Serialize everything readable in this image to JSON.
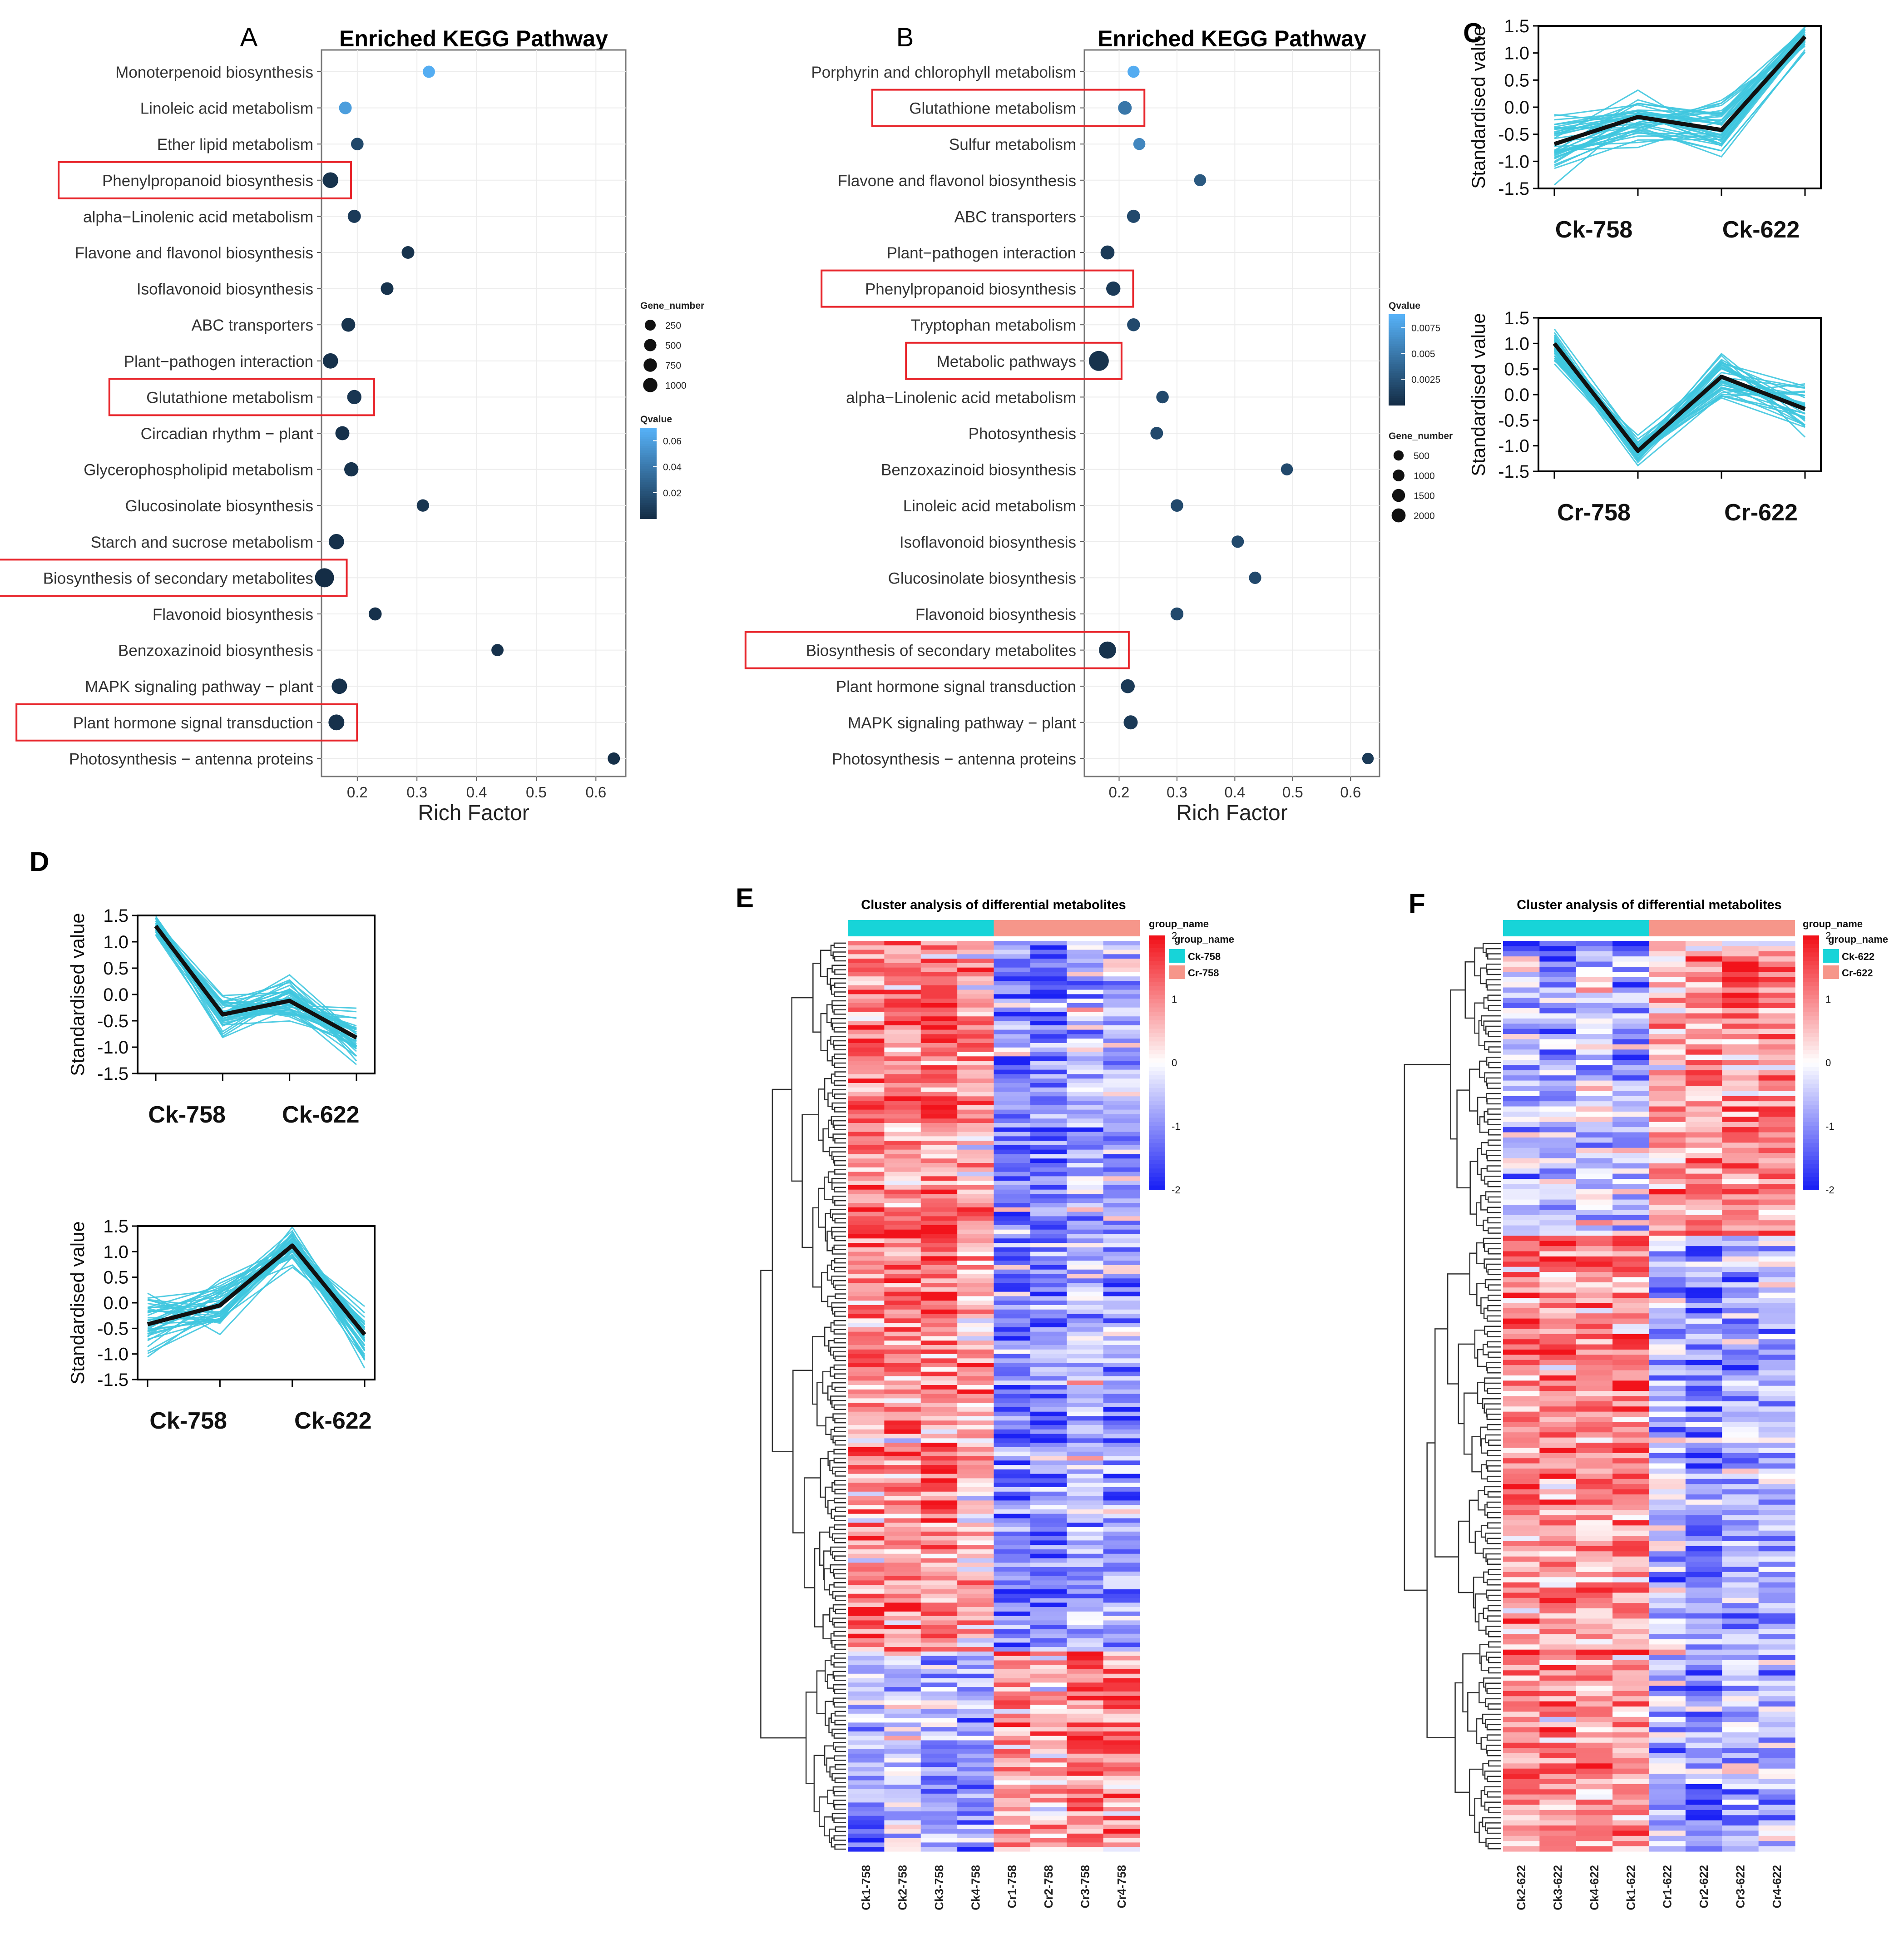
{
  "chart_data": [
    {
      "panel": "A",
      "type": "scatter",
      "title": "Enriched KEGG Pathway",
      "xlabel": "Rich Factor",
      "ylabel": "",
      "xlim": [
        0.14,
        0.65
      ],
      "xticks": [
        0.2,
        0.3,
        0.4,
        0.5,
        0.6
      ],
      "legend": {
        "gene_title": "Gene_number",
        "gene_values": [
          250,
          500,
          750,
          1000
        ],
        "q_title": "Qvalue",
        "q_ticks": [
          0.06,
          0.04,
          0.02
        ],
        "q_range": [
          0.0,
          0.07
        ],
        "position": "right"
      },
      "points": [
        {
          "pathway": "Monoterpenoid biosynthesis",
          "rich": 0.32,
          "genes": 60,
          "q": 0.068,
          "boxed": false
        },
        {
          "pathway": "Linoleic acid metabolism",
          "rich": 0.18,
          "genes": 90,
          "q": 0.06,
          "boxed": false
        },
        {
          "pathway": "Ether lipid metabolism",
          "rich": 0.2,
          "genes": 80,
          "q": 0.015,
          "boxed": false
        },
        {
          "pathway": "Phenylpropanoid biosynthesis",
          "rich": 0.155,
          "genes": 400,
          "q": 0.004,
          "boxed": true
        },
        {
          "pathway": "alpha−Linolenic acid metabolism",
          "rich": 0.195,
          "genes": 120,
          "q": 0.008,
          "boxed": false
        },
        {
          "pathway": "Flavone and flavonol biosynthesis",
          "rich": 0.285,
          "genes": 90,
          "q": 0.004,
          "boxed": false
        },
        {
          "pathway": "Isoflavonoid biosynthesis",
          "rich": 0.25,
          "genes": 90,
          "q": 0.004,
          "boxed": false
        },
        {
          "pathway": "ABC transporters",
          "rich": 0.185,
          "genes": 180,
          "q": 0.004,
          "boxed": false
        },
        {
          "pathway": "Plant−pathogen interaction",
          "rich": 0.155,
          "genes": 350,
          "q": 0.003,
          "boxed": false
        },
        {
          "pathway": "Glutathione metabolism",
          "rich": 0.195,
          "genes": 220,
          "q": 0.006,
          "boxed": true
        },
        {
          "pathway": "Circadian rhythm − plant",
          "rich": 0.175,
          "genes": 200,
          "q": 0.003,
          "boxed": false
        },
        {
          "pathway": "Glycerophospholipid metabolism",
          "rich": 0.19,
          "genes": 220,
          "q": 0.004,
          "boxed": false
        },
        {
          "pathway": "Glucosinolate biosynthesis",
          "rich": 0.31,
          "genes": 70,
          "q": 0.005,
          "boxed": false
        },
        {
          "pathway": "Starch and sucrose metabolism",
          "rich": 0.165,
          "genes": 350,
          "q": 0.003,
          "boxed": false
        },
        {
          "pathway": "Biosynthesis of secondary metabolites",
          "rich": 0.145,
          "genes": 1050,
          "q": 0.001,
          "boxed": true
        },
        {
          "pathway": "Flavonoid biosynthesis",
          "rich": 0.23,
          "genes": 110,
          "q": 0.003,
          "boxed": false
        },
        {
          "pathway": "Benzoxazinoid biosynthesis",
          "rich": 0.435,
          "genes": 60,
          "q": 0.003,
          "boxed": false
        },
        {
          "pathway": "MAPK signaling pathway − plant",
          "rich": 0.17,
          "genes": 360,
          "q": 0.003,
          "boxed": false
        },
        {
          "pathway": "Plant hormone signal transduction",
          "rich": 0.165,
          "genes": 420,
          "q": 0.003,
          "boxed": true
        },
        {
          "pathway": "Photosynthesis − antenna proteins",
          "rich": 0.63,
          "genes": 60,
          "q": 0.002,
          "boxed": false
        }
      ]
    },
    {
      "panel": "B",
      "type": "scatter",
      "title": "Enriched KEGG Pathway",
      "xlabel": "Rich Factor",
      "ylabel": "",
      "xlim": [
        0.14,
        0.65
      ],
      "xticks": [
        0.2,
        0.3,
        0.4,
        0.5,
        0.6
      ],
      "legend": {
        "q_title": "Qvalue",
        "q_ticks": [
          0.0075,
          0.005,
          0.0025
        ],
        "q_range": [
          0.0,
          0.0088
        ],
        "gene_title": "Gene_number",
        "gene_values": [
          500,
          1000,
          1500,
          2000
        ],
        "position": "right"
      },
      "points": [
        {
          "pathway": "Porphyrin and chlorophyll metabolism",
          "rich": 0.225,
          "genes": 150,
          "q": 0.0085,
          "boxed": false
        },
        {
          "pathway": "Glutathione metabolism",
          "rich": 0.21,
          "genes": 350,
          "q": 0.005,
          "boxed": true
        },
        {
          "pathway": "Sulfur metabolism",
          "rich": 0.235,
          "genes": 150,
          "q": 0.006,
          "boxed": false
        },
        {
          "pathway": "Flavone and flavonol biosynthesis",
          "rich": 0.34,
          "genes": 150,
          "q": 0.003,
          "boxed": false
        },
        {
          "pathway": "ABC transporters",
          "rich": 0.225,
          "genes": 280,
          "q": 0.002,
          "boxed": false
        },
        {
          "pathway": "Plant−pathogen interaction",
          "rich": 0.18,
          "genes": 400,
          "q": 0.001,
          "boxed": false
        },
        {
          "pathway": "Phenylpropanoid biosynthesis",
          "rich": 0.19,
          "genes": 450,
          "q": 0.001,
          "boxed": true
        },
        {
          "pathway": "Tryptophan metabolism",
          "rich": 0.225,
          "genes": 250,
          "q": 0.002,
          "boxed": false
        },
        {
          "pathway": "Metabolic pathways",
          "rich": 0.165,
          "genes": 2100,
          "q": 0.0005,
          "boxed": true
        },
        {
          "pathway": "alpha−Linolenic acid metabolism",
          "rich": 0.275,
          "genes": 200,
          "q": 0.002,
          "boxed": false
        },
        {
          "pathway": "Photosynthesis",
          "rich": 0.265,
          "genes": 220,
          "q": 0.002,
          "boxed": false
        },
        {
          "pathway": "Benzoxazinoid biosynthesis",
          "rich": 0.49,
          "genes": 150,
          "q": 0.002,
          "boxed": false
        },
        {
          "pathway": "Linoleic acid metabolism",
          "rich": 0.3,
          "genes": 200,
          "q": 0.002,
          "boxed": false
        },
        {
          "pathway": "Isoflavonoid biosynthesis",
          "rich": 0.405,
          "genes": 180,
          "q": 0.002,
          "boxed": false
        },
        {
          "pathway": "Glucosinolate biosynthesis",
          "rich": 0.435,
          "genes": 180,
          "q": 0.002,
          "boxed": false
        },
        {
          "pathway": "Flavonoid biosynthesis",
          "rich": 0.3,
          "genes": 250,
          "q": 0.002,
          "boxed": false
        },
        {
          "pathway": "Biosynthesis of secondary metabolites",
          "rich": 0.18,
          "genes": 1100,
          "q": 0.0005,
          "boxed": true
        },
        {
          "pathway": "Plant hormone signal transduction",
          "rich": 0.215,
          "genes": 400,
          "q": 0.001,
          "boxed": false
        },
        {
          "pathway": "MAPK signaling pathway − plant",
          "rich": 0.22,
          "genes": 420,
          "q": 0.001,
          "boxed": false
        },
        {
          "pathway": "Photosynthesis − antenna proteins",
          "rich": 0.63,
          "genes": 100,
          "q": 0.001,
          "boxed": false
        }
      ]
    },
    {
      "panel": "C",
      "type": "line",
      "ylabel": "Standardised value",
      "yticks": [
        "1.5",
        "1.0",
        "0.5",
        "0.0",
        "-0.5",
        "-1.0",
        "-1.5"
      ],
      "ylim": [
        -1.5,
        1.5
      ],
      "subplots": [
        {
          "xlabels": [
            "Ck-758",
            "Ck-622"
          ],
          "mean": [
            -0.68,
            -0.18,
            -0.42,
            1.3
          ],
          "spread": [
            0.5,
            0.55,
            0.45,
            0.3
          ],
          "n": 40,
          "seed": 11
        },
        {
          "xlabels": [
            "Cr-758",
            "Cr-622"
          ],
          "mean": [
            1.0,
            -1.1,
            0.35,
            -0.28
          ],
          "spread": [
            0.35,
            0.2,
            0.45,
            0.45
          ],
          "n": 40,
          "seed": 23
        }
      ]
    },
    {
      "panel": "D",
      "type": "line",
      "ylabel": "Standardised value",
      "yticks": [
        "1.5",
        "1.0",
        "0.5",
        "0.0",
        "-0.5",
        "-1.0",
        "-1.5"
      ],
      "ylim": [
        -1.5,
        1.5
      ],
      "subplots": [
        {
          "xlabels": [
            "Ck-758",
            "Ck-622"
          ],
          "mean": [
            1.3,
            -0.38,
            -0.12,
            -0.82
          ],
          "spread": [
            0.18,
            0.35,
            0.4,
            0.45
          ],
          "n": 40,
          "seed": 37
        },
        {
          "xlabels": [
            "Ck-758",
            "Ck-622"
          ],
          "mean": [
            -0.42,
            -0.05,
            1.12,
            -0.62
          ],
          "spread": [
            0.55,
            0.45,
            0.3,
            0.5
          ],
          "n": 40,
          "seed": 51
        }
      ]
    },
    {
      "panel": "E",
      "type": "heatmap",
      "title": "Cluster analysis of differential metabolites",
      "columns": [
        "Ck1-758",
        "Ck2-758",
        "Ck3-758",
        "Ck4-758",
        "Cr1-758",
        "Cr2-758",
        "Cr3-758",
        "Cr4-758"
      ],
      "groups": [
        {
          "name": "Ck-758",
          "color": "#17d4d8",
          "count": 4
        },
        {
          "name": "Cr-758",
          "color": "#f6968a",
          "count": 4
        }
      ],
      "legend_title": "group_name",
      "color_scale": {
        "min": -2,
        "max": 2,
        "ticks": [
          "2",
          "1",
          "0",
          "-1",
          "-2"
        ],
        "low": "#1b21f5",
        "mid": "#ffffff",
        "high": "#f2131b"
      },
      "row_count": 205,
      "blocks": [
        {
          "rows": 160,
          "pattern": [
            1.0,
            1.05,
            1.1,
            0.7,
            -1.1,
            -1.2,
            -0.6,
            -0.8
          ]
        },
        {
          "rows": 45,
          "pattern": [
            -0.8,
            -0.5,
            -0.8,
            -0.9,
            0.8,
            0.5,
            1.1,
            1.0
          ]
        }
      ],
      "seed": 71
    },
    {
      "panel": "F",
      "type": "heatmap",
      "title": "Cluster analysis of differential metabolites",
      "columns": [
        "Ck2-622",
        "Ck3-622",
        "Ck4-622",
        "Ck1-622",
        "Cr1-622",
        "Cr2-622",
        "Cr3-622",
        "Cr4-622"
      ],
      "groups": [
        {
          "name": "Ck-622",
          "color": "#17d4d8",
          "count": 4
        },
        {
          "name": "Cr-622",
          "color": "#f6968a",
          "count": 4
        }
      ],
      "legend_title": "group_name",
      "color_scale": {
        "min": -2,
        "max": 2,
        "ticks": [
          "2",
          "1",
          "0",
          "-1",
          "-2"
        ],
        "low": "#1b21f5",
        "mid": "#ffffff",
        "high": "#f2131b"
      },
      "row_count": 176,
      "blocks": [
        {
          "rows": 57,
          "pattern": [
            -0.6,
            -0.8,
            -0.5,
            -0.8,
            0.6,
            0.8,
            0.9,
            1.0
          ]
        },
        {
          "rows": 119,
          "pattern": [
            1.0,
            1.0,
            0.9,
            0.9,
            -0.6,
            -1.0,
            -0.7,
            -0.6
          ]
        }
      ],
      "seed": 97
    }
  ]
}
